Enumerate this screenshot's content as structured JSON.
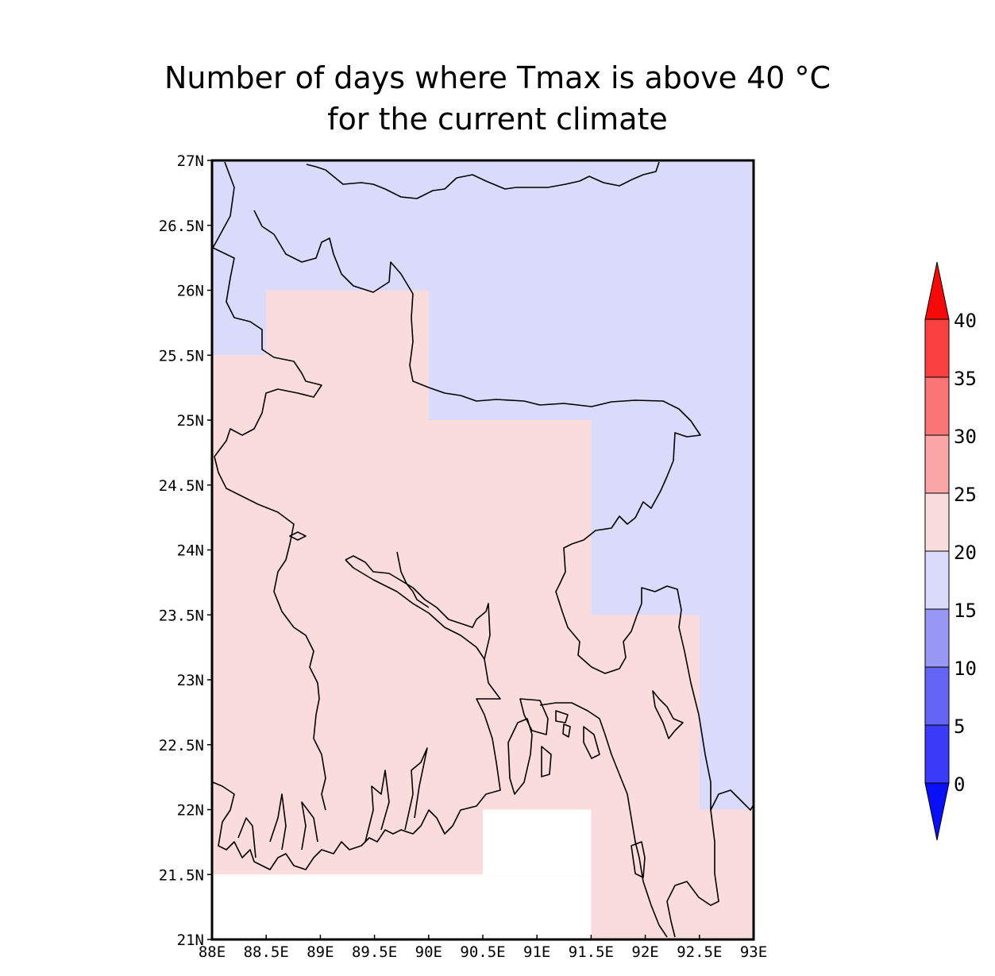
{
  "title": {
    "line1": "Number of days where Tmax is above 40 °C",
    "line2": "for the current climate"
  },
  "map": {
    "lon_range": [
      88,
      93
    ],
    "lat_range": [
      21,
      27
    ],
    "lon_ticks": [
      88,
      88.5,
      89,
      89.5,
      90,
      90.5,
      91,
      91.5,
      92,
      92.5,
      93
    ],
    "lon_labels": [
      "88E",
      "88.5E",
      "89E",
      "89.5E",
      "90E",
      "90.5E",
      "91E",
      "91.5E",
      "92E",
      "92.5E",
      "93E"
    ],
    "lat_ticks": [
      27,
      26.5,
      26,
      25.5,
      25,
      24.5,
      24,
      23.5,
      23,
      22.5,
      22,
      21.5,
      21
    ],
    "lat_labels": [
      "27N",
      "26.5N",
      "26N",
      "25.5N",
      "25N",
      "24.5N",
      "24N",
      "23.5N",
      "23N",
      "22.5N",
      "22N",
      "21.5N",
      "21N"
    ],
    "cells": [
      {
        "lon0": 88,
        "lon1": 93,
        "lat0": 21,
        "lat1": 27,
        "bin": "15-20"
      },
      {
        "lon0": 88.5,
        "lon1": 90,
        "lat0": 25.5,
        "lat1": 26,
        "bin": "20-25"
      },
      {
        "lon0": 88,
        "lon1": 90,
        "lat0": 25,
        "lat1": 25.5,
        "bin": "20-25"
      },
      {
        "lon0": 88,
        "lon1": 91.5,
        "lat0": 23.5,
        "lat1": 25,
        "bin": "20-25"
      },
      {
        "lon0": 88,
        "lon1": 92.5,
        "lat0": 22,
        "lat1": 23.5,
        "bin": "20-25"
      },
      {
        "lon0": 92.5,
        "lon1": 93,
        "lat0": 21,
        "lat1": 22,
        "bin": "20-25"
      },
      {
        "lon0": 88,
        "lon1": 90.5,
        "lat0": 21.5,
        "lat1": 22,
        "bin": "20-25"
      },
      {
        "lon0": 91.5,
        "lon1": 92.5,
        "lat0": 21,
        "lat1": 22,
        "bin": "20-25"
      },
      {
        "lon0": 88,
        "lon1": 91.5,
        "lat0": 21,
        "lat1": 21.5,
        "bin": "missing"
      },
      {
        "lon0": 90.5,
        "lon1": 91.5,
        "lat0": 21.5,
        "lat1": 22,
        "bin": "missing"
      }
    ]
  },
  "colorbar": {
    "levels": [
      "0",
      "5",
      "10",
      "15",
      "20",
      "25",
      "30",
      "35",
      "40"
    ],
    "colors": {
      "below-0": "#0a10f5",
      "0-5": "#3a3af7",
      "5-10": "#6464f5",
      "10-15": "#9999f5",
      "15-20": "#dadafb",
      "20-25": "#fbdcdc",
      "25-30": "#fba6a6",
      "30-35": "#fa7676",
      "35-40": "#fa4040",
      "above-40": "#f50a0a",
      "missing": "#ffffff"
    }
  },
  "chart_data": {
    "type": "heatmap",
    "title": "Number of days where Tmax is above 40 °C\nfor the current climate",
    "x_ticks": [
      "88E",
      "88.5E",
      "89E",
      "89.5E",
      "90E",
      "90.5E",
      "91E",
      "91.5E",
      "92E",
      "92.5E",
      "93E"
    ],
    "y_ticks": [
      "21N",
      "21.5N",
      "22N",
      "22.5N",
      "23N",
      "23.5N",
      "24N",
      "24.5N",
      "25N",
      "25.5N",
      "26N",
      "26.5N",
      "27N"
    ],
    "xlim": [
      88,
      93
    ],
    "ylim": [
      21,
      27
    ],
    "colorbar_levels": [
      0,
      5,
      10,
      15,
      20,
      25,
      30,
      35,
      40
    ],
    "colorbar_extends": "both",
    "cell_bins": {
      "15-20": "north and east regions",
      "20-25": "central and western Bangladesh",
      "missing": "Bay of Bengal area southern cells"
    }
  }
}
